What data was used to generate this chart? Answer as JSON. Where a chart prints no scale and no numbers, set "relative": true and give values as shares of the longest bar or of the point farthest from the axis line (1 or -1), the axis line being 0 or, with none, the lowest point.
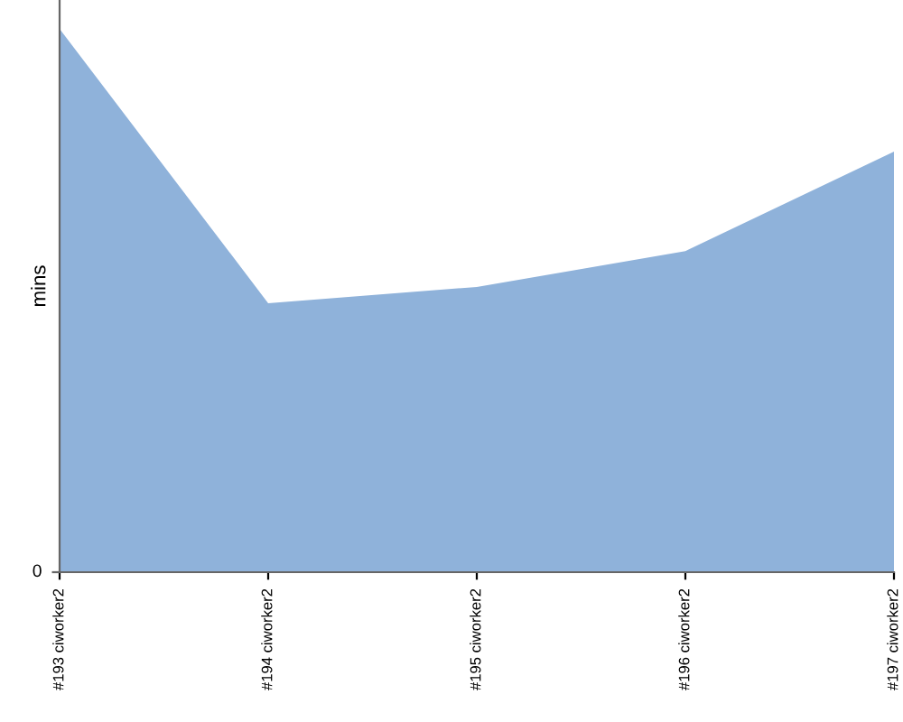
{
  "chart_data": {
    "type": "area",
    "ylabel": "mins",
    "relative": true,
    "categories": [
      "#193 ciworker2",
      "#194 ciworker2",
      "#195 ciworker2",
      "#196 ciworker2",
      "#197 ciworker2"
    ],
    "series": [
      {
        "color": "#8fb2da",
        "values": [
          1,
          0.495,
          0.525,
          0.591,
          0.774
        ]
      }
    ],
    "annotations": [
      "0"
    ],
    "grid": false,
    "legend": false
  }
}
